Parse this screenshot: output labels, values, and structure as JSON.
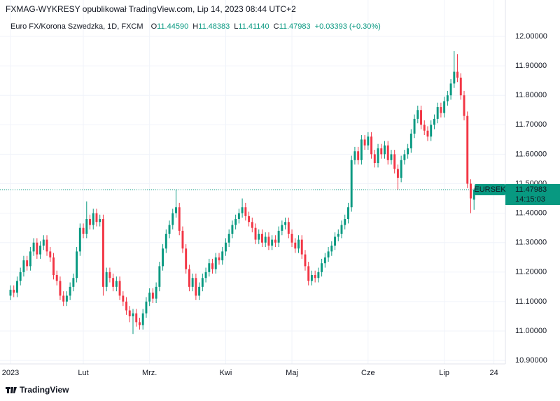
{
  "chart_data": {
    "type": "candlestick",
    "attribution": "FXMAG-WYKRESY opublikował TradingView.com, Lip 14, 2023 08:44 UTC+2",
    "symbol": "Euro FX/Korona Szwedzka, 1D, FXCM",
    "ohlc_legend": [
      {
        "label": "O",
        "value": "11.44590"
      },
      {
        "label": "H",
        "value": "11.48383"
      },
      {
        "label": "L",
        "value": "11.41140"
      },
      {
        "label": "C",
        "value": "11.47983"
      }
    ],
    "change": "+0.03393 (+0.30%)",
    "ticker": "EURSEK",
    "countdown": "14:15:03",
    "brand": "TradingView",
    "up_color": "#089981",
    "down_color": "#f23645",
    "grid": true,
    "ylim": [
      10.8884,
      12.1235
    ],
    "yticks": [
      {
        "value": 10.9,
        "label": "10.90000"
      },
      {
        "value": 11.0,
        "label": "11.00000"
      },
      {
        "value": 11.1,
        "label": "11.10000"
      },
      {
        "value": 11.2,
        "label": "11.20000"
      },
      {
        "value": 11.3,
        "label": "11.30000"
      },
      {
        "value": 11.4,
        "label": "11.40000"
      },
      {
        "value": 11.5,
        "label": "11.50000"
      },
      {
        "value": 11.6,
        "label": "11.60000"
      },
      {
        "value": 11.7,
        "label": "11.70000"
      },
      {
        "value": 11.8,
        "label": "11.80000"
      },
      {
        "value": 11.9,
        "label": "11.90000"
      },
      {
        "value": 12.0,
        "label": "12.00000"
      }
    ],
    "xlim": [
      -3.17,
      149.47
    ],
    "xticks": [
      {
        "value": 0,
        "label": "2023"
      },
      {
        "value": 22,
        "label": "Lut"
      },
      {
        "value": 42,
        "label": "Mrz."
      },
      {
        "value": 65,
        "label": "Kwi"
      },
      {
        "value": 85,
        "label": "Maj"
      },
      {
        "value": 108,
        "label": "Cze"
      },
      {
        "value": 131,
        "label": "Lip"
      },
      {
        "value": 146,
        "label": "24"
      }
    ],
    "open": [
      11.12,
      11.14,
      11.13,
      11.17,
      11.2,
      11.24,
      11.22,
      11.27,
      11.3,
      11.26,
      11.29,
      11.31,
      11.27,
      11.25,
      11.19,
      11.17,
      11.12,
      11.1,
      11.12,
      11.15,
      11.18,
      11.27,
      11.35,
      11.33,
      11.38,
      11.36,
      11.4,
      11.37,
      11.38,
      11.15,
      11.2,
      11.18,
      11.15,
      11.17,
      11.12,
      11.1,
      11.07,
      11.05,
      11.06,
      11.03,
      11.02,
      11.06,
      11.1,
      11.13,
      11.11,
      11.15,
      11.22,
      11.28,
      11.33,
      11.36,
      11.4,
      11.42,
      11.34,
      11.28,
      11.21,
      11.15,
      11.18,
      11.12,
      11.15,
      11.18,
      11.2,
      11.23,
      11.21,
      11.25,
      11.24,
      11.27,
      11.3,
      11.33,
      11.36,
      11.38,
      11.4,
      11.42,
      11.39,
      11.37,
      11.35,
      11.31,
      11.33,
      11.3,
      11.32,
      11.29,
      11.31,
      11.3,
      11.34,
      11.36,
      11.37,
      11.33,
      11.3,
      11.28,
      11.31,
      11.26,
      11.22,
      11.17,
      11.19,
      11.18,
      11.2,
      11.23,
      11.25,
      11.27,
      11.29,
      11.32,
      11.33,
      11.36,
      11.38,
      11.42,
      11.58,
      11.61,
      11.58,
      11.65,
      11.63,
      11.66,
      11.6,
      11.57,
      11.62,
      11.6,
      11.63,
      11.58,
      11.6,
      11.55,
      11.52,
      11.58,
      11.6,
      11.62,
      11.67,
      11.72,
      11.75,
      11.7,
      11.68,
      11.66,
      11.7,
      11.72,
      11.76,
      11.74,
      11.78,
      11.8,
      11.84,
      11.88,
      11.86,
      11.8,
      11.73,
      11.5,
      11.4459
    ],
    "high": [
      11.155,
      11.155,
      11.185,
      11.215,
      11.255,
      11.255,
      11.285,
      11.315,
      11.315,
      11.305,
      11.325,
      11.325,
      11.285,
      11.265,
      11.205,
      11.185,
      11.135,
      11.135,
      11.165,
      11.195,
      11.285,
      11.365,
      11.365,
      11.44,
      11.395,
      11.415,
      11.415,
      11.395,
      11.395,
      11.215,
      11.215,
      11.195,
      11.185,
      11.185,
      11.135,
      11.115,
      11.085,
      11.075,
      11.075,
      11.045,
      11.075,
      11.115,
      11.145,
      11.145,
      11.165,
      11.235,
      11.295,
      11.345,
      11.375,
      11.415,
      11.48,
      11.435,
      11.355,
      11.295,
      11.225,
      11.195,
      11.195,
      11.165,
      11.195,
      11.215,
      11.245,
      11.245,
      11.265,
      11.265,
      11.285,
      11.315,
      11.345,
      11.375,
      11.395,
      11.415,
      11.45,
      11.435,
      11.405,
      11.385,
      11.365,
      11.345,
      11.345,
      11.335,
      11.335,
      11.325,
      11.325,
      11.355,
      11.375,
      11.385,
      11.385,
      11.345,
      11.315,
      11.325,
      11.325,
      11.275,
      11.235,
      11.205,
      11.205,
      11.215,
      11.245,
      11.265,
      11.285,
      11.305,
      11.335,
      11.345,
      11.375,
      11.395,
      11.435,
      11.595,
      11.625,
      11.625,
      11.665,
      11.665,
      11.675,
      11.675,
      11.615,
      11.635,
      11.635,
      11.645,
      11.645,
      11.615,
      11.615,
      11.565,
      11.595,
      11.615,
      11.635,
      11.685,
      11.735,
      11.765,
      11.765,
      11.715,
      11.695,
      11.715,
      11.735,
      11.775,
      11.775,
      11.795,
      11.815,
      11.855,
      11.95,
      11.94,
      11.875,
      11.815,
      11.745,
      11.515,
      11.48383
    ],
    "low": [
      11.105,
      11.115,
      11.115,
      11.155,
      11.185,
      11.205,
      11.205,
      11.255,
      11.245,
      11.245,
      11.275,
      11.255,
      11.235,
      11.175,
      11.155,
      11.105,
      11.085,
      11.085,
      11.105,
      11.135,
      11.165,
      11.255,
      11.315,
      11.315,
      11.345,
      11.345,
      11.355,
      11.355,
      11.12,
      11.135,
      11.165,
      11.135,
      11.135,
      11.105,
      11.085,
      11.055,
      11.03,
      10.99,
      11.015,
      11.005,
      11.005,
      11.045,
      11.085,
      11.095,
      11.095,
      11.135,
      11.205,
      11.265,
      11.315,
      11.345,
      11.385,
      11.325,
      11.265,
      11.195,
      11.135,
      11.135,
      11.105,
      11.105,
      11.135,
      11.165,
      11.185,
      11.195,
      11.195,
      11.225,
      11.225,
      11.255,
      11.285,
      11.315,
      11.345,
      11.365,
      11.385,
      11.375,
      11.355,
      11.335,
      11.295,
      11.295,
      11.285,
      11.285,
      11.275,
      11.275,
      11.285,
      11.285,
      11.325,
      11.345,
      11.315,
      11.285,
      11.265,
      11.265,
      11.245,
      11.205,
      11.155,
      11.155,
      11.165,
      11.165,
      11.185,
      11.215,
      11.235,
      11.255,
      11.275,
      11.305,
      11.315,
      11.345,
      11.365,
      11.405,
      11.565,
      11.565,
      11.565,
      11.615,
      11.615,
      11.585,
      11.555,
      11.555,
      11.585,
      11.585,
      11.565,
      11.565,
      11.535,
      11.48,
      11.505,
      11.565,
      11.585,
      11.605,
      11.655,
      11.705,
      11.685,
      11.665,
      11.645,
      11.645,
      11.685,
      11.705,
      11.725,
      11.725,
      11.765,
      11.785,
      11.825,
      11.845,
      11.785,
      11.715,
      11.485,
      11.4,
      11.4114
    ],
    "close": [
      11.14,
      11.13,
      11.17,
      11.2,
      11.24,
      11.22,
      11.27,
      11.3,
      11.26,
      11.29,
      11.31,
      11.27,
      11.25,
      11.19,
      11.17,
      11.12,
      11.1,
      11.12,
      11.15,
      11.18,
      11.27,
      11.35,
      11.33,
      11.38,
      11.36,
      11.4,
      11.37,
      11.38,
      11.15,
      11.2,
      11.18,
      11.15,
      11.17,
      11.12,
      11.1,
      11.07,
      11.05,
      11.06,
      11.03,
      11.02,
      11.06,
      11.1,
      11.13,
      11.11,
      11.15,
      11.22,
      11.28,
      11.33,
      11.36,
      11.4,
      11.42,
      11.34,
      11.28,
      11.21,
      11.15,
      11.18,
      11.12,
      11.15,
      11.18,
      11.2,
      11.23,
      11.21,
      11.25,
      11.24,
      11.27,
      11.3,
      11.33,
      11.36,
      11.38,
      11.4,
      11.42,
      11.39,
      11.37,
      11.35,
      11.31,
      11.33,
      11.3,
      11.32,
      11.29,
      11.31,
      11.3,
      11.34,
      11.36,
      11.37,
      11.33,
      11.3,
      11.28,
      11.31,
      11.26,
      11.22,
      11.17,
      11.19,
      11.18,
      11.2,
      11.23,
      11.25,
      11.27,
      11.29,
      11.32,
      11.33,
      11.36,
      11.38,
      11.42,
      11.58,
      11.61,
      11.58,
      11.65,
      11.63,
      11.66,
      11.6,
      11.57,
      11.62,
      11.6,
      11.63,
      11.58,
      11.6,
      11.55,
      11.52,
      11.58,
      11.6,
      11.62,
      11.67,
      11.72,
      11.75,
      11.7,
      11.68,
      11.66,
      11.7,
      11.72,
      11.76,
      11.74,
      11.78,
      11.8,
      11.84,
      11.88,
      11.86,
      11.8,
      11.73,
      11.5,
      11.45,
      11.47983
    ]
  }
}
